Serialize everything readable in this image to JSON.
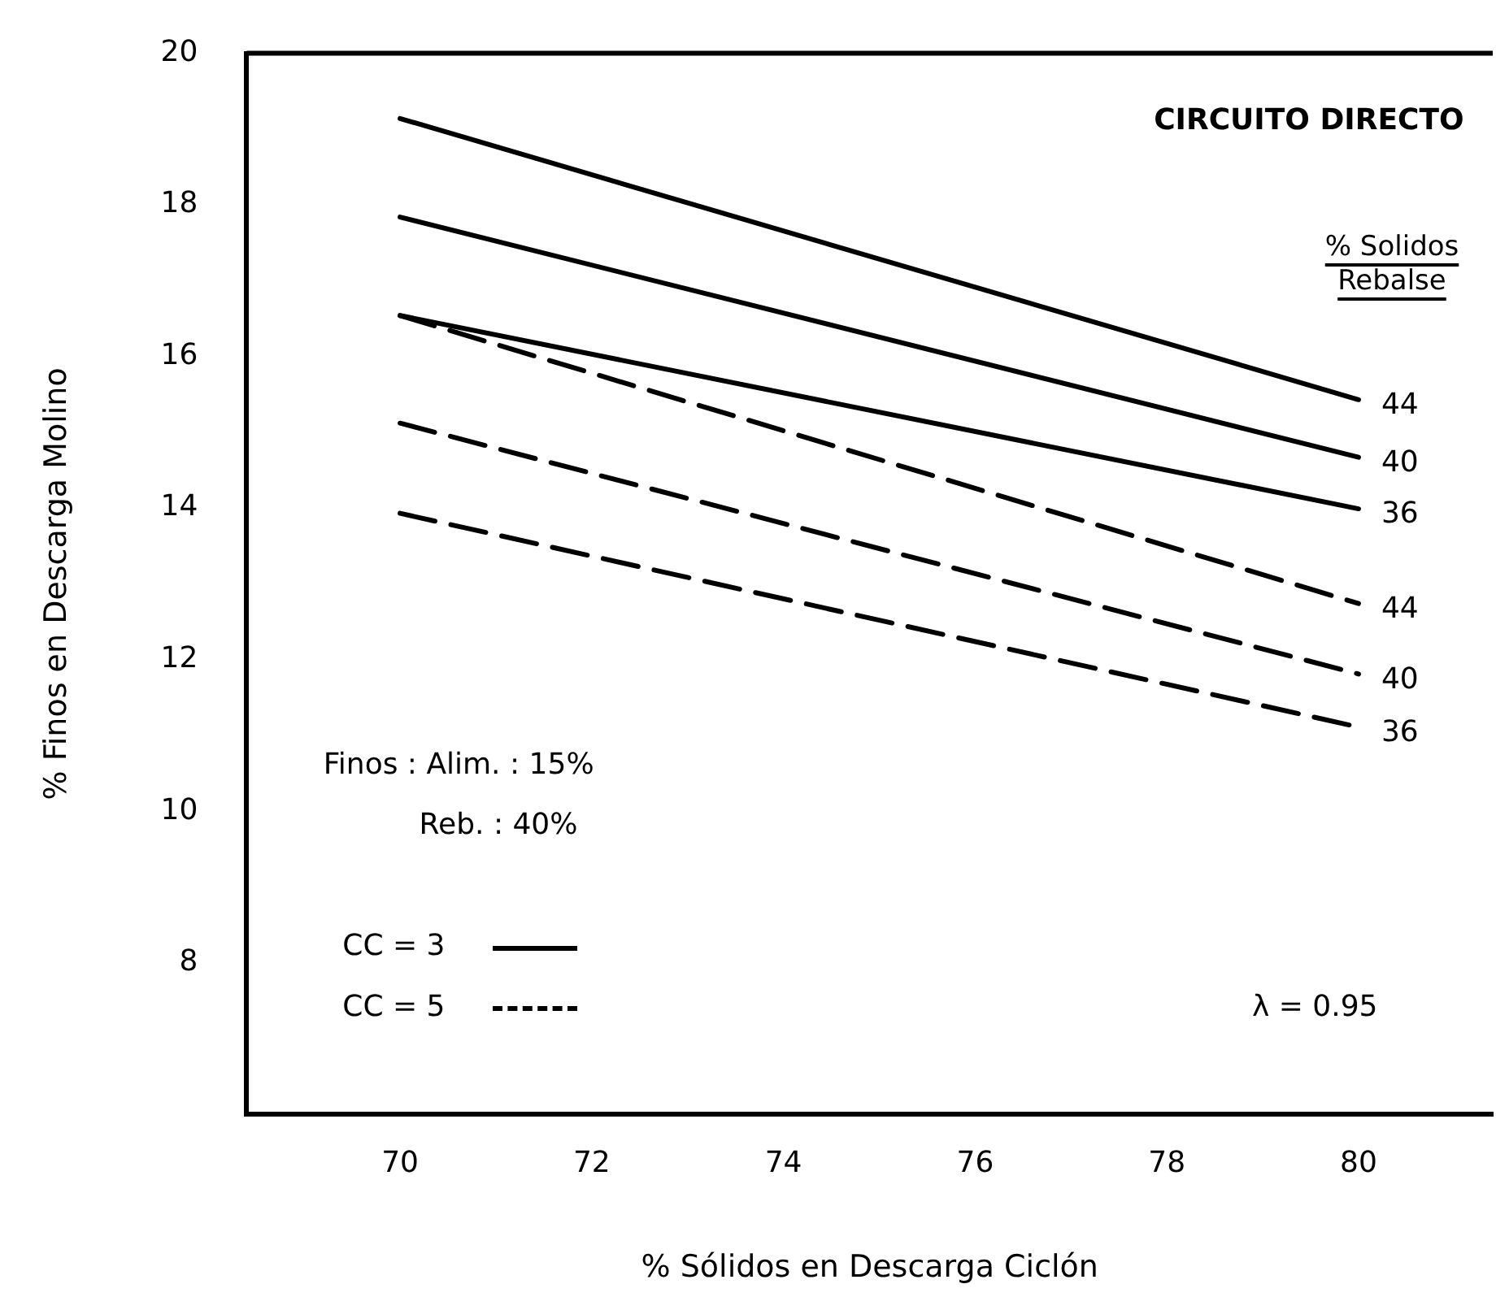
{
  "chart_data": {
    "type": "line",
    "xlabel": "% Sólidos en Descarga Ciclón",
    "ylabel": "% Finos en Descarga Molino",
    "legend_title": "% Solidos Rebalse",
    "x": [
      70,
      80
    ],
    "xlim": [
      68.4,
      81.4
    ],
    "xticks": [
      70,
      72,
      74,
      76,
      78,
      80
    ],
    "ylim": [
      6,
      20
    ],
    "yticks": [
      8,
      10,
      12,
      14,
      16,
      18,
      20
    ],
    "grid": false,
    "legend": false,
    "marker": "none",
    "series": [
      {
        "name": "44",
        "color": "#000000",
        "line_style": "solid",
        "values": [
          19.14,
          15.43
        ]
      },
      {
        "name": "40",
        "color": "#000000",
        "line_style": "solid",
        "values": [
          17.84,
          14.67
        ]
      },
      {
        "name": "36",
        "color": "#000000",
        "line_style": "solid",
        "values": [
          16.54,
          13.99
        ]
      },
      {
        "name": "44",
        "color": "#000000",
        "line_style": "dashed",
        "values": [
          16.54,
          12.74
        ]
      },
      {
        "name": "40",
        "color": "#000000",
        "line_style": "dashed",
        "values": [
          15.12,
          11.81
        ]
      },
      {
        "name": "36",
        "color": "#000000",
        "line_style": "dashed",
        "values": [
          13.93,
          11.11
        ]
      }
    ],
    "annotations": [
      "CIRCUITO DIRECTO",
      "Finos : Alim. : 15%",
      "Reb. : 40%",
      "CC = 3",
      "CC = 5",
      "λ = 0.95"
    ]
  }
}
